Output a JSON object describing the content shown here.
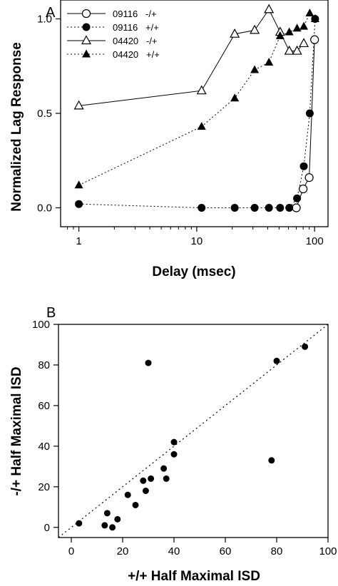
{
  "chart_data": [
    {
      "panel": "A",
      "type": "line",
      "xlabel": "Delay (msec)",
      "ylabel": "Normalized Lag Response",
      "xscale": "log",
      "xlim": [
        0.7,
        130
      ],
      "ylim": [
        -0.1,
        1.1
      ],
      "xticks": [
        1,
        10,
        100
      ],
      "xtick_labels": [
        "1",
        "10",
        "100"
      ],
      "yticks": [
        0.0,
        0.5,
        1.0
      ],
      "ytick_labels": [
        "0.0",
        "0.5",
        "1.0"
      ],
      "grid": false,
      "legend_position": "top-left",
      "series": [
        {
          "name": "09116   -/+",
          "marker": "open-circle",
          "line": "solid",
          "points": [
            [
              70,
              0.0
            ],
            [
              80,
              0.1
            ],
            [
              90,
              0.16
            ],
            [
              100,
              0.89
            ]
          ]
        },
        {
          "name": "09116   +/+",
          "marker": "filled-circle",
          "line": "dotted",
          "points": [
            [
              1,
              0.02
            ],
            [
              11,
              0.0
            ],
            [
              21,
              0.0
            ],
            [
              31,
              0.0
            ],
            [
              41,
              0.0
            ],
            [
              51,
              0.0
            ],
            [
              61,
              0.0
            ],
            [
              71,
              0.05
            ],
            [
              81,
              0.22
            ],
            [
              91,
              0.5
            ],
            [
              101,
              1.0
            ]
          ]
        },
        {
          "name": "04420   -/+",
          "marker": "open-triangle",
          "line": "solid",
          "points": [
            [
              1,
              0.54
            ],
            [
              11,
              0.62
            ],
            [
              21,
              0.92
            ],
            [
              31,
              0.94
            ],
            [
              41,
              1.05
            ],
            [
              51,
              0.93
            ],
            [
              61,
              0.83
            ],
            [
              71,
              0.83
            ],
            [
              81,
              0.87
            ]
          ]
        },
        {
          "name": "04420   +/+",
          "marker": "filled-triangle",
          "line": "dotted",
          "points": [
            [
              1,
              0.12
            ],
            [
              11,
              0.43
            ],
            [
              21,
              0.58
            ],
            [
              31,
              0.73
            ],
            [
              41,
              0.77
            ],
            [
              51,
              0.91
            ],
            [
              61,
              0.93
            ],
            [
              71,
              0.95
            ],
            [
              81,
              0.96
            ],
            [
              91,
              1.03
            ],
            [
              101,
              1.0
            ]
          ]
        }
      ]
    },
    {
      "panel": "B",
      "type": "scatter",
      "xlabel": "+/+ Half Maximal ISD",
      "ylabel": "-/+ Half Maximal ISD",
      "xlim": [
        -5,
        100
      ],
      "ylim": [
        -5,
        100
      ],
      "xticks": [
        0,
        20,
        40,
        60,
        80,
        100
      ],
      "xtick_labels": [
        "0",
        "20",
        "40",
        "60",
        "80",
        "100"
      ],
      "yticks": [
        0,
        20,
        40,
        60,
        80,
        100
      ],
      "ytick_labels": [
        "0",
        "20",
        "40",
        "60",
        "80",
        "100"
      ],
      "grid": false,
      "reference_line": "identity (dotted)",
      "points": [
        [
          3,
          2
        ],
        [
          13,
          1
        ],
        [
          14,
          7
        ],
        [
          16,
          0
        ],
        [
          18,
          4
        ],
        [
          22,
          16
        ],
        [
          25,
          11
        ],
        [
          28,
          23
        ],
        [
          29,
          18
        ],
        [
          31,
          24
        ],
        [
          36,
          29
        ],
        [
          37,
          24
        ],
        [
          40,
          36
        ],
        [
          40,
          42
        ],
        [
          30,
          81
        ],
        [
          78,
          33
        ],
        [
          80,
          82
        ],
        [
          91,
          89
        ]
      ]
    }
  ]
}
